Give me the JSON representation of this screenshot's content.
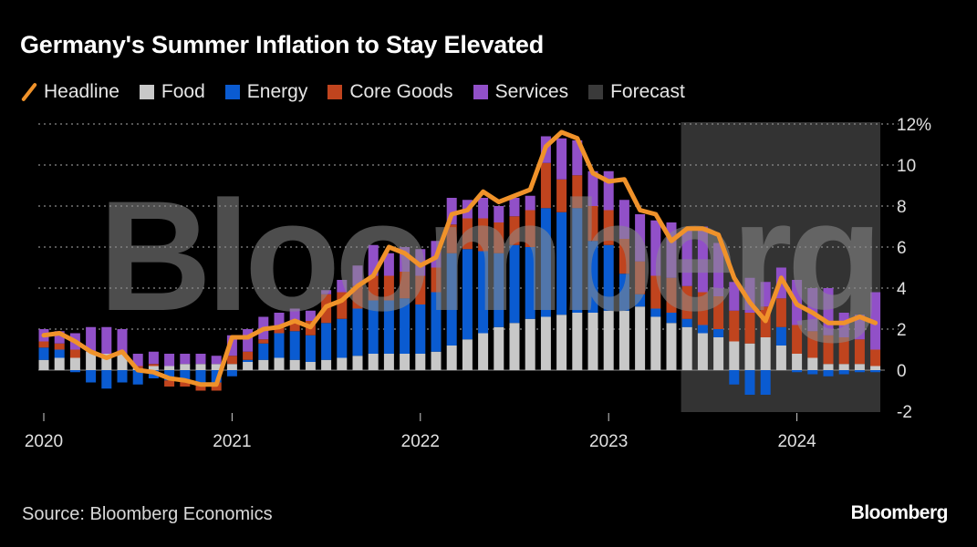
{
  "title": "Germany's Summer Inflation to Stay Elevated",
  "legend": [
    {
      "key": "headline",
      "label": "Headline",
      "color": "#f0922a",
      "kind": "line"
    },
    {
      "key": "food",
      "label": "Food",
      "color": "#c8c8c8",
      "kind": "box"
    },
    {
      "key": "energy",
      "label": "Energy",
      "color": "#0a5bd1",
      "kind": "box"
    },
    {
      "key": "core",
      "label": "Core Goods",
      "color": "#c0441e",
      "kind": "box"
    },
    {
      "key": "services",
      "label": "Services",
      "color": "#9150c8",
      "kind": "box"
    },
    {
      "key": "forecast",
      "label": "Forecast",
      "color": "#3a3a3a",
      "kind": "box"
    }
  ],
  "source": "Source: Bloomberg Economics",
  "brand": "Bloomberg",
  "watermark": "Bloomberg",
  "chart_data": {
    "type": "bar",
    "stacked": true,
    "title": "Germany's Summer Inflation to Stay Elevated",
    "xlabel": "",
    "ylabel": "%",
    "ylim": [
      -2,
      12
    ],
    "yticks": [
      -2,
      0,
      2,
      4,
      6,
      8,
      10,
      12
    ],
    "ytick_labels": [
      "-2",
      "0",
      "2",
      "4",
      "6",
      "8",
      "10",
      "12%"
    ],
    "xticks": [
      "2020",
      "2021",
      "2022",
      "2023",
      "2024"
    ],
    "grid": "horizontal-dotted",
    "legend_position": "top-left",
    "frequency": "monthly",
    "start": "2020-01",
    "forecast_start": "2023-06",
    "forecast_end": "2024-06",
    "x": [
      "2020-01",
      "2020-02",
      "2020-03",
      "2020-04",
      "2020-05",
      "2020-06",
      "2020-07",
      "2020-08",
      "2020-09",
      "2020-10",
      "2020-11",
      "2020-12",
      "2021-01",
      "2021-02",
      "2021-03",
      "2021-04",
      "2021-05",
      "2021-06",
      "2021-07",
      "2021-08",
      "2021-09",
      "2021-10",
      "2021-11",
      "2021-12",
      "2022-01",
      "2022-02",
      "2022-03",
      "2022-04",
      "2022-05",
      "2022-06",
      "2022-07",
      "2022-08",
      "2022-09",
      "2022-10",
      "2022-11",
      "2022-12",
      "2023-01",
      "2023-02",
      "2023-03",
      "2023-04",
      "2023-05",
      "2023-06",
      "2023-07",
      "2023-08",
      "2023-09",
      "2023-10",
      "2023-11",
      "2023-12",
      "2024-01",
      "2024-02",
      "2024-03",
      "2024-04",
      "2024-05",
      "2024-06"
    ],
    "series": [
      {
        "name": "Food",
        "values": [
          0.5,
          0.6,
          0.6,
          0.9,
          0.8,
          0.8,
          0.1,
          0.2,
          0.2,
          0.3,
          0.3,
          0.3,
          0.3,
          0.4,
          0.5,
          0.6,
          0.5,
          0.4,
          0.5,
          0.6,
          0.7,
          0.8,
          0.8,
          0.8,
          0.8,
          0.9,
          1.2,
          1.5,
          1.8,
          2.1,
          2.3,
          2.5,
          2.6,
          2.7,
          2.8,
          2.8,
          2.9,
          2.9,
          3.1,
          2.6,
          2.3,
          2.1,
          1.8,
          1.6,
          1.4,
          1.3,
          1.6,
          1.2,
          0.8,
          0.6,
          0.3,
          0.3,
          0.3,
          0.2
        ]
      },
      {
        "name": "Energy",
        "values": [
          0.6,
          0.4,
          -0.1,
          -0.6,
          -0.9,
          -0.6,
          -0.7,
          -0.4,
          -0.5,
          -0.5,
          -0.6,
          -0.6,
          -0.3,
          0.1,
          0.8,
          1.2,
          1.4,
          1.3,
          1.8,
          1.9,
          2.3,
          2.6,
          2.6,
          2.7,
          2.4,
          2.9,
          4.5,
          4.4,
          4.0,
          3.6,
          3.8,
          3.5,
          5.3,
          5.0,
          5.1,
          3.5,
          3.2,
          1.8,
          0.6,
          0.4,
          0.5,
          0.4,
          0.4,
          0.4,
          -0.7,
          -1.2,
          -1.2,
          0.9,
          -0.1,
          -0.2,
          -0.3,
          -0.2,
          -0.1,
          -0.1
        ]
      },
      {
        "name": "Core Goods",
        "values": [
          0.3,
          0.3,
          0.4,
          0.0,
          0.0,
          0.0,
          0.1,
          0.1,
          -0.3,
          -0.3,
          -0.4,
          -0.4,
          0.4,
          0.4,
          0.2,
          0.3,
          0.4,
          0.7,
          1.4,
          1.3,
          1.1,
          1.2,
          1.2,
          1.3,
          1.4,
          1.2,
          1.4,
          1.5,
          1.6,
          1.5,
          1.4,
          1.8,
          2.2,
          1.6,
          1.6,
          1.7,
          1.7,
          1.7,
          1.6,
          1.6,
          1.7,
          1.6,
          1.6,
          1.6,
          1.5,
          1.5,
          1.5,
          1.4,
          1.4,
          1.3,
          1.4,
          1.3,
          1.2,
          0.8
        ]
      },
      {
        "name": "Services",
        "values": [
          0.6,
          0.6,
          0.8,
          1.2,
          1.3,
          1.2,
          0.6,
          0.6,
          0.6,
          0.5,
          0.5,
          0.4,
          1.0,
          1.1,
          1.1,
          0.7,
          0.7,
          0.5,
          0.2,
          0.6,
          1.0,
          1.5,
          1.1,
          1.2,
          1.3,
          1.3,
          1.3,
          0.9,
          1.0,
          0.8,
          0.9,
          0.7,
          1.3,
          2.0,
          1.7,
          1.7,
          1.9,
          1.9,
          2.3,
          2.7,
          2.7,
          2.7,
          3.2,
          2.6,
          1.4,
          1.7,
          1.2,
          1.5,
          2.2,
          2.1,
          2.3,
          1.2,
          1.2,
          2.8
        ]
      },
      {
        "name": "Headline",
        "kind": "line",
        "values": [
          1.7,
          1.8,
          1.4,
          0.9,
          0.6,
          0.9,
          0.0,
          -0.1,
          -0.4,
          -0.5,
          -0.7,
          -0.7,
          1.6,
          1.6,
          2.0,
          2.1,
          2.4,
          2.1,
          3.1,
          3.4,
          4.1,
          4.6,
          6.0,
          5.7,
          5.1,
          5.5,
          7.6,
          7.8,
          8.7,
          8.2,
          8.5,
          8.8,
          10.9,
          11.6,
          11.3,
          9.6,
          9.2,
          9.3,
          7.8,
          7.6,
          6.3,
          6.9,
          6.9,
          6.6,
          4.5,
          3.3,
          2.4,
          4.5,
          3.2,
          2.8,
          2.3,
          2.3,
          2.6,
          2.3
        ]
      }
    ]
  }
}
